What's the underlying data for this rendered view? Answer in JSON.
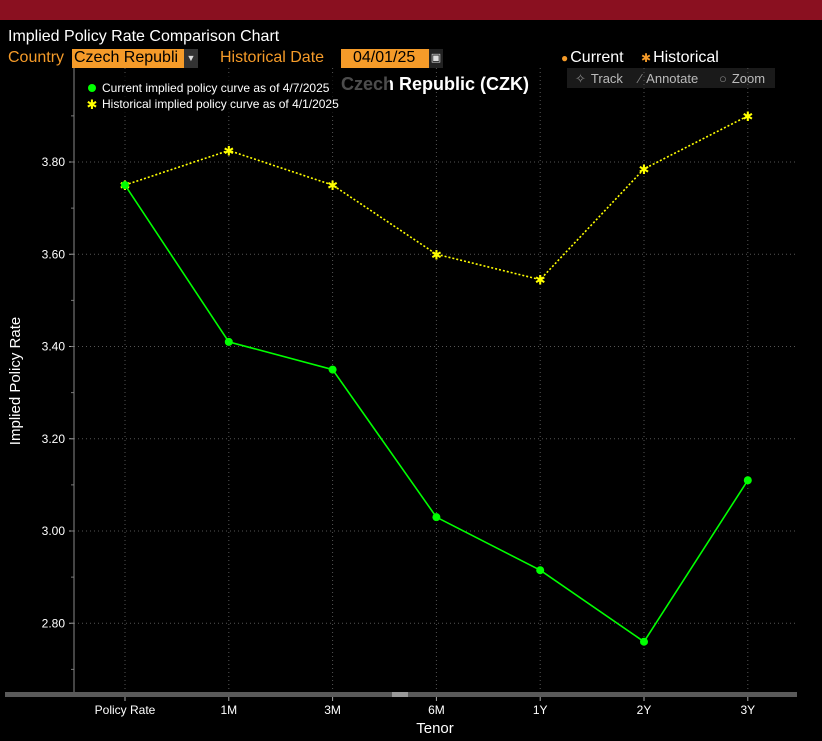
{
  "window": {
    "title": "Implied Policy Rate Comparison Chart"
  },
  "controls": {
    "country_label": "Country",
    "country_value": "Czech Republi",
    "historical_date_label": "Historical Date",
    "historical_date_value": "04/01/25",
    "current_toggle": "Current",
    "historical_toggle": "Historical"
  },
  "toolbar": {
    "track": "Track",
    "annotate": "Annotate",
    "zoom": "Zoom"
  },
  "colors": {
    "accent": "#f59b29",
    "topbar": "#8a1020",
    "current": "#00ff00",
    "historical": "#ffff00"
  },
  "icons": {
    "track": "crosshair-icon",
    "annotate": "pencil-icon",
    "zoom": "magnifier-icon",
    "dropdown": "chevron-down-icon",
    "calendar": "calendar-icon"
  },
  "chart_data": {
    "type": "line",
    "title": "Czech Republic (CZK)",
    "xlabel": "Tenor",
    "ylabel": "Implied Policy Rate",
    "categories": [
      "Policy Rate",
      "1M",
      "3M",
      "6M",
      "1Y",
      "2Y",
      "3Y"
    ],
    "yticks": [
      "3.80",
      "3.60",
      "3.40",
      "3.20",
      "3.00",
      "2.80"
    ],
    "ylim": [
      2.68,
      3.99
    ],
    "grid": true,
    "legend_position": "top-left",
    "series": [
      {
        "name": "Current implied policy curve as of 4/7/2025",
        "color": "#00ff00",
        "marker": "dot",
        "style": "solid",
        "values": [
          3.75,
          3.41,
          3.35,
          3.03,
          2.915,
          2.76,
          3.11
        ]
      },
      {
        "name": "Historical implied policy curve as of 4/1/2025",
        "color": "#ffff00",
        "marker": "star",
        "style": "dotted",
        "values": [
          3.75,
          3.825,
          3.75,
          3.6,
          3.545,
          3.785,
          3.9
        ]
      }
    ]
  }
}
